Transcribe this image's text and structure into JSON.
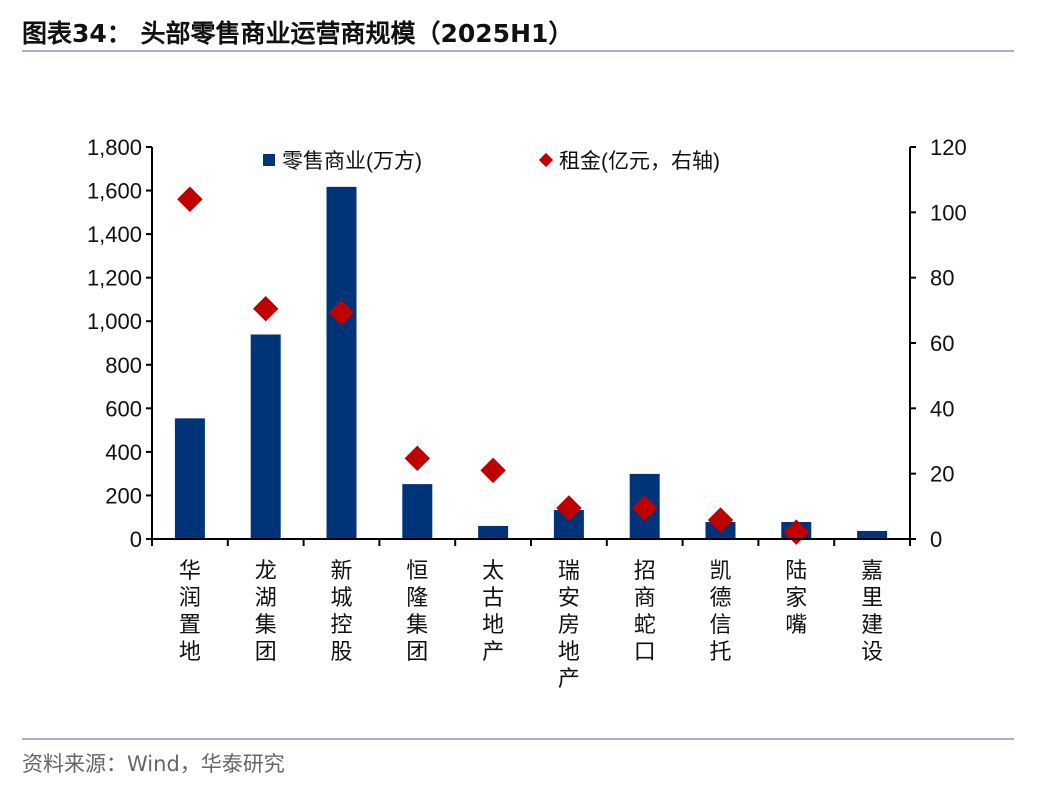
{
  "header": {
    "title": "图表34：  头部零售商业运营商规模（2025H1）"
  },
  "footer": {
    "source": "资料来源：Wind，华泰研究"
  },
  "colors": {
    "bar": "#003478",
    "marker": "#c00000",
    "rule": "#9fb4cc"
  },
  "chart_data": {
    "type": "bar+scatter",
    "title": "头部零售商业运营商规模（2025H1）",
    "categories": [
      "华润置地",
      "龙湖集团",
      "新城控股",
      "恒隆集团",
      "太古地产",
      "瑞安房地产",
      "招商蛇口",
      "凯德信托",
      "陆家嘴",
      "嘉里建设"
    ],
    "series": [
      {
        "name": "零售商业(万方)",
        "type": "bar",
        "axis": "left",
        "values": [
          554,
          939,
          1617,
          252,
          60,
          133,
          299,
          78,
          78,
          37
        ]
      },
      {
        "name": "租金(亿元，右轴)",
        "type": "scatter",
        "axis": "right",
        "values": [
          104,
          70.5,
          69.3,
          24.7,
          21,
          9.5,
          9.5,
          5.8,
          2.1,
          null
        ]
      }
    ],
    "left_axis": {
      "ylim": [
        0,
        1800
      ],
      "ticks": [
        "0",
        "200",
        "400",
        "600",
        "800",
        "1,000",
        "1,200",
        "1,400",
        "1,600",
        "1,800"
      ]
    },
    "right_axis": {
      "ylim": [
        0,
        120
      ],
      "ticks": [
        "0",
        "20",
        "40",
        "60",
        "80",
        "100",
        "120"
      ]
    },
    "legend": {
      "placement": "top",
      "items": [
        "零售商业(万方)",
        "租金(亿元，右轴)"
      ]
    },
    "grid": false
  }
}
